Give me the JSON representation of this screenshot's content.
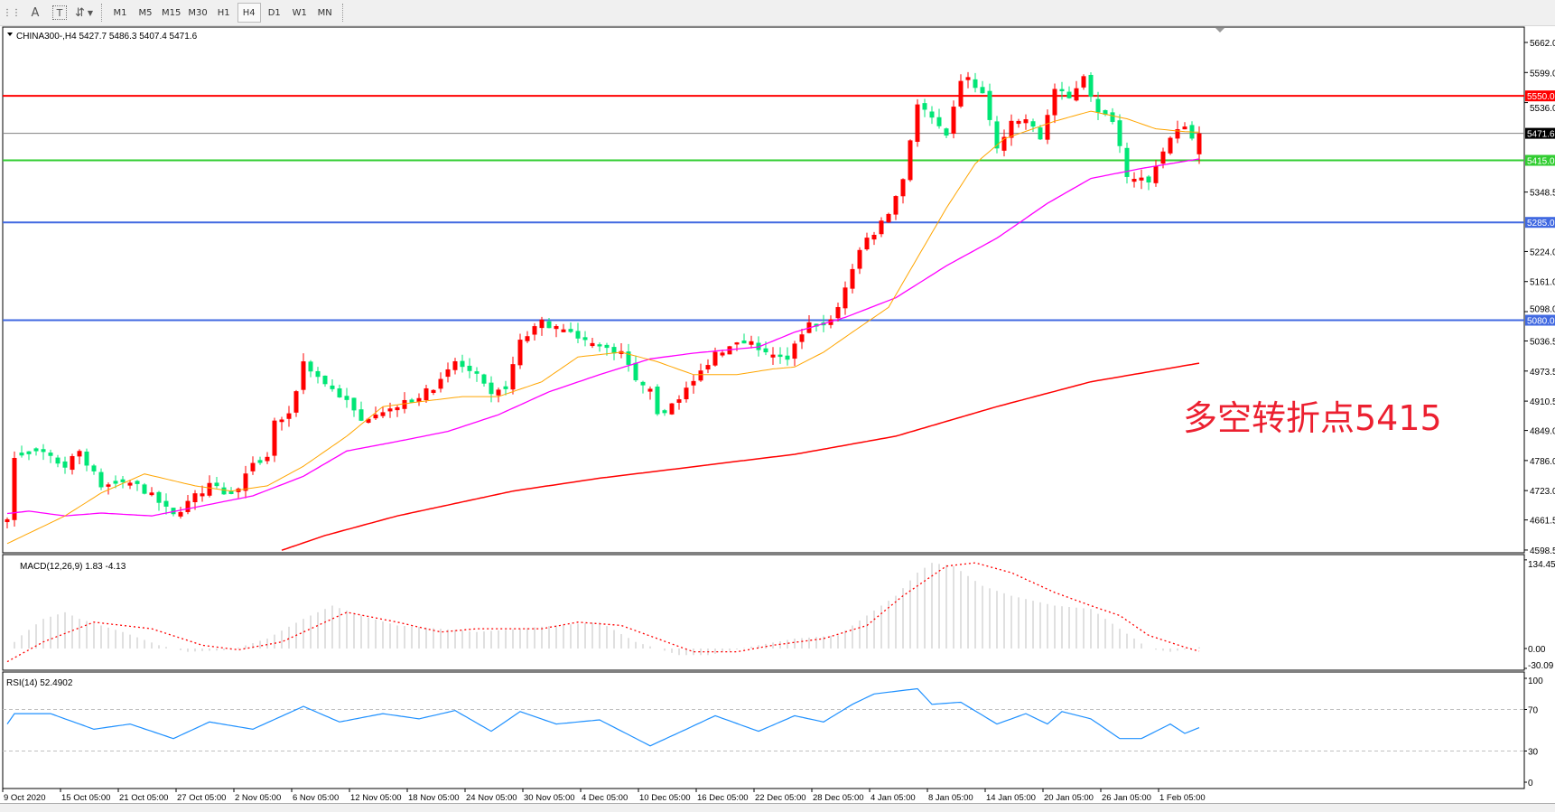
{
  "toolbar": {
    "icons": [
      "grid-properties-icon",
      "text-a-icon",
      "text-label-icon",
      "arrows-icon"
    ],
    "text_a": "A",
    "text_t": "T",
    "timeframes": [
      "M1",
      "M5",
      "M15",
      "M30",
      "H1",
      "H4",
      "D1",
      "W1",
      "MN"
    ],
    "active_timeframe": "H4"
  },
  "main": {
    "title": "CHINA300-,H4  5427.7 5486.3 5407.4 5471.6",
    "annotation": "多空转折点5415",
    "price_labels": [
      "5662.0",
      "5599.0",
      "5536.0",
      "5348.5",
      "5224.0",
      "5161.0",
      "5098.0",
      "5036.5",
      "4973.5",
      "4910.5",
      "4849.0",
      "4786.0",
      "4723.0",
      "4661.5",
      "4598.5"
    ],
    "levels": [
      {
        "value": 5550.0,
        "label": "5550.0",
        "color": "#ff0000"
      },
      {
        "value": 5471.6,
        "label": "5471.6",
        "color": "#808080",
        "label_bg": "#000000"
      },
      {
        "value": 5415.0,
        "label": "5415.0",
        "color": "#32cd32"
      },
      {
        "value": 5285.0,
        "label": "5285.0",
        "color": "#4169e1"
      },
      {
        "value": 5080.0,
        "label": "5080.0",
        "color": "#4169e1"
      }
    ],
    "colors": {
      "up": "#ff0000",
      "down": "#00e676",
      "ma_fast": "#ffa500",
      "ma_mid": "#ff00ff",
      "ma_slow": "#ff0000"
    }
  },
  "macd": {
    "title": "MACD(12,26,9) 1.83 -4.13",
    "axis_labels": [
      "134.45",
      "0.00",
      "-30.09"
    ],
    "colors": {
      "histogram": "#c0c0c0",
      "signal": "#ff0000"
    }
  },
  "rsi": {
    "title": "RSI(14) 52.4902",
    "axis_labels": [
      "100",
      "70",
      "30",
      "0"
    ],
    "color": "#1e90ff"
  },
  "time_labels": [
    "9 Oct 2020",
    "15 Oct 05:00",
    "21 Oct 05:00",
    "27 Oct 05:00",
    "2 Nov 05:00",
    "6 Nov 05:00",
    "12 Nov 05:00",
    "18 Nov 05:00",
    "24 Nov 05:00",
    "30 Nov 05:00",
    "4 Dec 05:00",
    "10 Dec 05:00",
    "16 Dec 05:00",
    "22 Dec 05:00",
    "28 Dec 05:00",
    "4 Jan 05:00",
    "8 Jan 05:00",
    "14 Jan 05:00",
    "20 Jan 05:00",
    "26 Jan 05:00",
    "1 Feb 05:00"
  ],
  "chart_data": {
    "type": "candlestick",
    "symbol": "CHINA300-",
    "timeframe": "H4",
    "bar_count": 166,
    "ylim": [
      4598.5,
      5662.0
    ],
    "last_bar": {
      "open": 5427.7,
      "high": 5486.3,
      "low": 5407.4,
      "close": 5471.6
    },
    "close_keypoints": [
      [
        0,
        4670
      ],
      [
        1,
        4791
      ],
      [
        4,
        4806
      ],
      [
        8,
        4774
      ],
      [
        10,
        4806
      ],
      [
        13,
        4733
      ],
      [
        17,
        4743
      ],
      [
        20,
        4712
      ],
      [
        23,
        4670
      ],
      [
        26,
        4712
      ],
      [
        28,
        4733
      ],
      [
        31,
        4712
      ],
      [
        34,
        4774
      ],
      [
        36,
        4795
      ],
      [
        37,
        4868
      ],
      [
        39,
        4878
      ],
      [
        41,
        4993
      ],
      [
        43,
        4961
      ],
      [
        47,
        4909
      ],
      [
        49,
        4868
      ],
      [
        51,
        4889
      ],
      [
        54,
        4899
      ],
      [
        57,
        4920
      ],
      [
        60,
        4951
      ],
      [
        62,
        4993
      ],
      [
        65,
        4961
      ],
      [
        67,
        4920
      ],
      [
        69,
        4941
      ],
      [
        71,
        5034
      ],
      [
        74,
        5076
      ],
      [
        76,
        5065
      ],
      [
        79,
        5044
      ],
      [
        82,
        5024
      ],
      [
        85,
        5013
      ],
      [
        87,
        4951
      ],
      [
        89,
        4930
      ],
      [
        90,
        4878
      ],
      [
        93,
        4920
      ],
      [
        95,
        4951
      ],
      [
        98,
        5013
      ],
      [
        102,
        5034
      ],
      [
        104,
        5024
      ],
      [
        108,
        4993
      ],
      [
        109,
        5034
      ],
      [
        111,
        5076
      ],
      [
        113,
        5065
      ],
      [
        115,
        5107
      ],
      [
        117,
        5190
      ],
      [
        119,
        5252
      ],
      [
        120,
        5263
      ],
      [
        122,
        5304
      ],
      [
        124,
        5377
      ],
      [
        125,
        5460
      ],
      [
        126,
        5533
      ],
      [
        128,
        5502
      ],
      [
        130,
        5460
      ],
      [
        132,
        5585
      ],
      [
        133,
        5585
      ],
      [
        135,
        5554
      ],
      [
        137,
        5439
      ],
      [
        139,
        5491
      ],
      [
        141,
        5502
      ],
      [
        143,
        5460
      ],
      [
        145,
        5564
      ],
      [
        147,
        5543
      ],
      [
        149,
        5595
      ],
      [
        151,
        5512
      ],
      [
        153,
        5502
      ],
      [
        155,
        5387
      ],
      [
        157,
        5377
      ],
      [
        158,
        5367
      ],
      [
        159,
        5408
      ],
      [
        161,
        5460
      ],
      [
        163,
        5491
      ],
      [
        164,
        5460
      ],
      [
        165,
        5471.6
      ]
    ],
    "ma_fast": [
      [
        0,
        4612
      ],
      [
        8,
        4670
      ],
      [
        13,
        4718
      ],
      [
        19,
        4758
      ],
      [
        26,
        4733
      ],
      [
        31,
        4722
      ],
      [
        36,
        4733
      ],
      [
        41,
        4774
      ],
      [
        47,
        4837
      ],
      [
        52,
        4899
      ],
      [
        57,
        4909
      ],
      [
        63,
        4920
      ],
      [
        68,
        4920
      ],
      [
        74,
        4951
      ],
      [
        79,
        5003
      ],
      [
        85,
        5013
      ],
      [
        90,
        4993
      ],
      [
        95,
        4966
      ],
      [
        101,
        4966
      ],
      [
        106,
        4978
      ],
      [
        109,
        4982
      ],
      [
        113,
        5013
      ],
      [
        117,
        5055
      ],
      [
        122,
        5107
      ],
      [
        126,
        5211
      ],
      [
        130,
        5315
      ],
      [
        134,
        5408
      ],
      [
        138,
        5460
      ],
      [
        145,
        5497
      ],
      [
        150,
        5518
      ],
      [
        155,
        5502
      ],
      [
        159,
        5481
      ],
      [
        163,
        5475
      ],
      [
        165,
        5474
      ]
    ],
    "ma_mid": [
      [
        0,
        4675
      ],
      [
        3,
        4680
      ],
      [
        8,
        4670
      ],
      [
        13,
        4676
      ],
      [
        20,
        4670
      ],
      [
        27,
        4691
      ],
      [
        34,
        4712
      ],
      [
        41,
        4753
      ],
      [
        47,
        4806
      ],
      [
        54,
        4826
      ],
      [
        61,
        4847
      ],
      [
        68,
        4882
      ],
      [
        75,
        4930
      ],
      [
        82,
        4966
      ],
      [
        89,
        4999
      ],
      [
        95,
        5011
      ],
      [
        104,
        5024
      ],
      [
        109,
        5055
      ],
      [
        116,
        5086
      ],
      [
        123,
        5127
      ],
      [
        130,
        5194
      ],
      [
        137,
        5252
      ],
      [
        144,
        5325
      ],
      [
        150,
        5377
      ],
      [
        157,
        5398
      ],
      [
        165,
        5418
      ]
    ],
    "ma_slow": [
      [
        38,
        4598
      ],
      [
        44,
        4629
      ],
      [
        54,
        4670
      ],
      [
        70,
        4722
      ],
      [
        82,
        4749
      ],
      [
        109,
        4799
      ],
      [
        123,
        4837
      ],
      [
        137,
        4899
      ],
      [
        150,
        4951
      ],
      [
        165,
        4990
      ]
    ],
    "macd_histogram": [
      [
        0,
        0
      ],
      [
        2,
        20
      ],
      [
        5,
        45
      ],
      [
        8,
        55
      ],
      [
        10,
        45
      ],
      [
        16,
        25
      ],
      [
        21,
        5
      ],
      [
        25,
        -5
      ],
      [
        31,
        -2
      ],
      [
        36,
        15
      ],
      [
        41,
        45
      ],
      [
        45,
        65
      ],
      [
        49,
        50
      ],
      [
        54,
        35
      ],
      [
        60,
        30
      ],
      [
        65,
        25
      ],
      [
        71,
        30
      ],
      [
        76,
        35
      ],
      [
        82,
        40
      ],
      [
        87,
        10
      ],
      [
        93,
        -10
      ],
      [
        97,
        -10
      ],
      [
        104,
        5
      ],
      [
        109,
        15
      ],
      [
        115,
        20
      ],
      [
        119,
        50
      ],
      [
        123,
        80
      ],
      [
        126,
        115
      ],
      [
        128,
        130
      ],
      [
        131,
        125
      ],
      [
        135,
        95
      ],
      [
        139,
        80
      ],
      [
        145,
        65
      ],
      [
        150,
        60
      ],
      [
        154,
        30
      ],
      [
        158,
        0
      ],
      [
        161,
        -5
      ],
      [
        165,
        1.83
      ]
    ],
    "macd_signal": [
      [
        0,
        -20
      ],
      [
        5,
        10
      ],
      [
        12,
        40
      ],
      [
        20,
        30
      ],
      [
        27,
        5
      ],
      [
        32,
        -2
      ],
      [
        38,
        10
      ],
      [
        43,
        35
      ],
      [
        47,
        55
      ],
      [
        54,
        40
      ],
      [
        60,
        25
      ],
      [
        65,
        30
      ],
      [
        74,
        30
      ],
      [
        79,
        40
      ],
      [
        85,
        35
      ],
      [
        90,
        15
      ],
      [
        95,
        -5
      ],
      [
        101,
        -5
      ],
      [
        106,
        5
      ],
      [
        113,
        15
      ],
      [
        119,
        35
      ],
      [
        124,
        80
      ],
      [
        130,
        125
      ],
      [
        134,
        130
      ],
      [
        139,
        115
      ],
      [
        145,
        85
      ],
      [
        150,
        65
      ],
      [
        154,
        50
      ],
      [
        158,
        20
      ],
      [
        163,
        2
      ],
      [
        165,
        -4.13
      ]
    ],
    "rsi": [
      [
        0,
        56
      ],
      [
        1,
        66
      ],
      [
        6,
        66
      ],
      [
        12,
        51
      ],
      [
        17,
        56
      ],
      [
        23,
        42
      ],
      [
        28,
        58
      ],
      [
        34,
        51
      ],
      [
        41,
        73
      ],
      [
        46,
        58
      ],
      [
        52,
        66
      ],
      [
        57,
        61
      ],
      [
        62,
        69
      ],
      [
        67,
        49
      ],
      [
        71,
        68
      ],
      [
        76,
        56
      ],
      [
        82,
        60
      ],
      [
        89,
        35
      ],
      [
        94,
        51
      ],
      [
        98,
        64
      ],
      [
        104,
        49
      ],
      [
        109,
        64
      ],
      [
        113,
        58
      ],
      [
        117,
        75
      ],
      [
        120,
        85
      ],
      [
        126,
        90
      ],
      [
        128,
        75
      ],
      [
        132,
        77
      ],
      [
        137,
        56
      ],
      [
        141,
        66
      ],
      [
        144,
        56
      ],
      [
        146,
        68
      ],
      [
        150,
        61
      ],
      [
        154,
        42
      ],
      [
        157,
        42
      ],
      [
        161,
        56
      ],
      [
        163,
        47
      ],
      [
        165,
        52.49
      ]
    ],
    "rsi_levels": [
      70,
      30
    ],
    "macd_ylim": [
      -30.09,
      134.45
    ],
    "rsi_ylim": [
      0,
      100
    ]
  }
}
